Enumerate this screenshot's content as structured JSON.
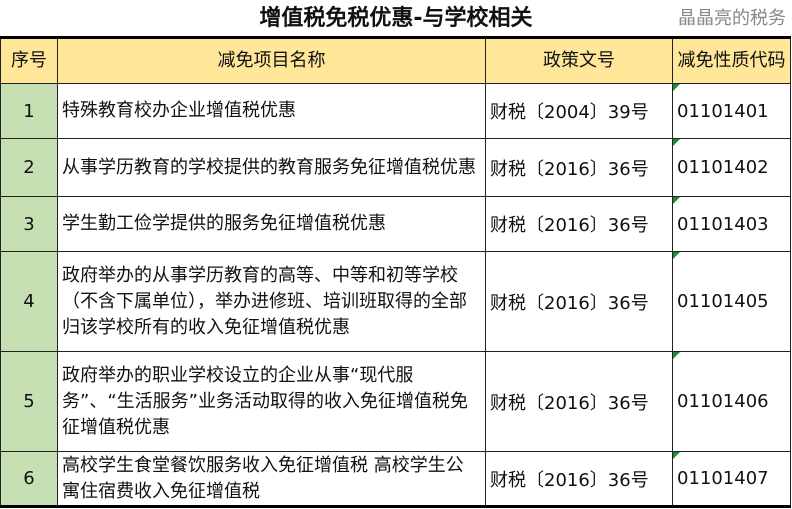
{
  "title": "增值税免税优惠-与学校相关",
  "headers": [
    "序号",
    "减免项目名称",
    "政策文号",
    "减免性质代码"
  ],
  "rows": [
    {
      "seq": "1",
      "name": "特殊教育校办企业增值税优惠",
      "doc": "财税〔2004〕39号",
      "code": "01101401"
    },
    {
      "seq": "2",
      "name": "从事学历教育的学校提供的教育服务免征增值税优惠",
      "doc": "财税〔2016〕36号",
      "code": "01101402"
    },
    {
      "seq": "3",
      "name": "学生勤工俭学提供的服务免征增值税优惠",
      "doc": "财税〔2016〕36号",
      "code": "01101403"
    },
    {
      "seq": "4",
      "name": "政府举办的从事学历教育的高等、中等和初等学校（不含下属单位），举办进修班、培训班取得的全部归该学校所有的收入免征增值税优惠",
      "doc": "财税〔2016〕36号",
      "code": "01101405"
    },
    {
      "seq": "5",
      "name": "政府举办的职业学校设立的企业从事“现代服务”、“生活服务”业务活动取得的收入免征增值税免征增值税优惠",
      "doc": "财税〔2016〕36号",
      "code": "01101406"
    },
    {
      "seq": "6",
      "name": "高校学生食堂餐饮服务收入免征增值税 高校学生公寓住宿费收入免征增值税",
      "doc": "财税〔2016〕36号",
      "code": "01101407"
    }
  ],
  "watermark": "晶晶亮的税务",
  "colors": {
    "header_bg": "#FFE699",
    "seq_bg": "#C6E0B4",
    "comment_marker": "#1E8A3C"
  }
}
